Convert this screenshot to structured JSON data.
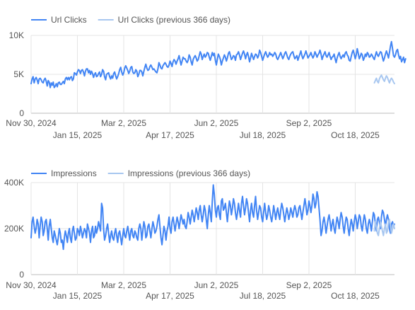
{
  "colors": {
    "current": "#4285F4",
    "previous": "#A8C7F0",
    "grid": "#e4e4e4",
    "text": "#555555"
  },
  "chart_data": [
    {
      "type": "line",
      "series": [
        {
          "name": "Url Clicks",
          "start_date": "2024-11-30",
          "values": [
            3800,
            4400,
            4700,
            3900,
            4400,
            4600,
            4300,
            3800,
            4400,
            4500,
            4300,
            4000,
            3900,
            4300,
            4500,
            4100,
            3500,
            4200,
            4000,
            3300,
            3900,
            3600,
            4000,
            3300,
            3500,
            3800,
            3400,
            3900,
            4000,
            3700,
            3700,
            3900,
            4100,
            3800,
            4400,
            4600,
            4300,
            4600,
            4300,
            4600,
            4700,
            4200,
            4400,
            5200,
            5100,
            4900,
            5300,
            5600,
            5500,
            5100,
            5500,
            5600,
            5300,
            4800,
            5400,
            5700,
            5700,
            5200,
            5500,
            5000,
            5400,
            5100,
            4600,
            5000,
            5200,
            4700,
            4800,
            5100,
            5300,
            4700,
            5000,
            5600,
            5400,
            4700,
            4300,
            5000,
            5100,
            5200,
            4700,
            4400,
            4800,
            4500,
            5100,
            5300,
            4800,
            4400,
            4700,
            5100,
            5600,
            5900,
            5300,
            4900,
            5200,
            5800,
            6100,
            5800,
            5500,
            5100,
            5400,
            5900,
            6000,
            5300,
            5100,
            5200,
            5600,
            5400,
            4700,
            5000,
            5500,
            5500,
            5300,
            4800,
            5400,
            5900,
            6300,
            5800,
            5500,
            5600,
            6000,
            6200,
            5900,
            5600,
            5700,
            5500,
            5300,
            5200,
            5700,
            6500,
            6200,
            5800,
            5700,
            6100,
            6300,
            6500,
            6300,
            6000,
            5900,
            6200,
            6700,
            6400,
            6000,
            6600,
            6900,
            6700,
            6300,
            6700,
            7000,
            7400,
            6800,
            6200,
            6700,
            7200,
            7000,
            7000,
            6700,
            6500,
            6800,
            7500,
            7200,
            6600,
            6200,
            6900,
            7200,
            7400,
            7100,
            6700,
            6900,
            7400,
            7900,
            7600,
            6900,
            7300,
            7600,
            7200,
            7400,
            7800,
            7700,
            7200,
            6800,
            7300,
            7800,
            7400,
            7700,
            6800,
            6200,
            6900,
            7600,
            7300,
            6900,
            6200,
            6700,
            7100,
            7500,
            7200,
            6700,
            7100,
            7700,
            7900,
            7400,
            6900,
            7100,
            7400,
            7300,
            6800,
            7500,
            7600,
            7900,
            7500,
            6900,
            7300,
            7700,
            8000,
            7600,
            7000,
            7500,
            7800,
            7300,
            6600,
            7100,
            7700,
            7300,
            6900,
            7300,
            7600,
            7500,
            7100,
            7400,
            8100,
            7800,
            7300,
            6800,
            7200,
            7600,
            7900,
            7500,
            7200,
            7400,
            7800,
            7500,
            7600,
            7300,
            7500,
            7800,
            7600,
            7100,
            6900,
            7200,
            7500,
            7800,
            7400,
            7000,
            7300,
            7700,
            7900,
            7500,
            7100,
            6900,
            7300,
            7600,
            7800,
            7900,
            7400,
            7000,
            7200,
            7400,
            6800,
            7200,
            7600,
            8000,
            7400,
            7000,
            7300,
            7600,
            8000,
            7600,
            7100,
            7300,
            7500,
            7800,
            7400,
            7100,
            7400,
            7900,
            7600,
            7200,
            7500,
            7700,
            8100,
            7600,
            6900,
            7300,
            7600,
            7900,
            7400,
            7200,
            7500,
            7800,
            7300,
            6900,
            7200,
            7300,
            7600,
            7000,
            6500,
            7100,
            7500,
            7800,
            7300,
            7000,
            7300,
            7500,
            7200,
            7700,
            7900,
            7500,
            7300,
            6800,
            6700,
            7300,
            7800,
            8100,
            7600,
            7000,
            7500,
            8300,
            7700,
            7000,
            7300,
            7700,
            7500,
            6800,
            7100,
            7600,
            7300,
            7800,
            7600,
            7200,
            7300,
            7600,
            7400,
            7100,
            6900,
            7400,
            7900,
            7500,
            7300,
            7600,
            7900,
            7800,
            7200,
            6700,
            7100,
            7600,
            8000,
            7600,
            7100,
            7800,
            8600,
            9200,
            8300,
            7400,
            7200,
            7500,
            8000,
            8200,
            7500,
            7000,
            7300,
            6600,
            6900,
            7200,
            6500,
            7000
          ]
        },
        {
          "name": "Url Clicks (previous 366 days)",
          "start_date": "2025-11-06",
          "values": [
            3900,
            4200,
            4500,
            4100,
            3900,
            4400,
            4700,
            4900,
            4600,
            4300,
            4100,
            4500,
            4800,
            4600,
            4200,
            3900,
            4300,
            4500,
            4300,
            4000,
            3800
          ]
        }
      ],
      "x_ticks": [
        "Nov 30, 2024",
        "Jan 15, 2025",
        "Mar 2, 2025",
        "Apr 17, 2025",
        "Jun 2, 2025",
        "Jul 18, 2025",
        "Sep 2, 2025",
        "Oct 18, 2025"
      ],
      "y_ticks": [
        "0",
        "5K",
        "10K"
      ],
      "ylim": [
        0,
        10000
      ],
      "x_range": [
        "2024-11-30",
        "2025-11-26"
      ],
      "grid": true,
      "legend": "top-left"
    },
    {
      "type": "line",
      "series": [
        {
          "name": "Impressions",
          "start_date": "2024-11-30",
          "values": [
            160000,
            230000,
            250000,
            210000,
            180000,
            200000,
            240000,
            220000,
            160000,
            210000,
            250000,
            230000,
            170000,
            190000,
            230000,
            240000,
            200000,
            150000,
            210000,
            240000,
            200000,
            160000,
            140000,
            190000,
            170000,
            150000,
            130000,
            160000,
            200000,
            180000,
            140000,
            150000,
            110000,
            160000,
            190000,
            170000,
            140000,
            180000,
            200000,
            160000,
            140000,
            190000,
            210000,
            180000,
            150000,
            160000,
            200000,
            190000,
            170000,
            210000,
            190000,
            160000,
            180000,
            200000,
            190000,
            160000,
            220000,
            200000,
            180000,
            140000,
            190000,
            210000,
            160000,
            170000,
            210000,
            180000,
            200000,
            230000,
            210000,
            190000,
            310000,
            290000,
            200000,
            150000,
            170000,
            200000,
            220000,
            180000,
            140000,
            170000,
            190000,
            160000,
            150000,
            180000,
            200000,
            170000,
            140000,
            180000,
            190000,
            160000,
            130000,
            170000,
            200000,
            170000,
            160000,
            190000,
            210000,
            180000,
            150000,
            190000,
            200000,
            170000,
            160000,
            190000,
            180000,
            160000,
            150000,
            200000,
            220000,
            200000,
            150000,
            190000,
            230000,
            210000,
            160000,
            170000,
            210000,
            220000,
            190000,
            160000,
            200000,
            230000,
            210000,
            180000,
            190000,
            210000,
            240000,
            260000,
            210000,
            160000,
            130000,
            170000,
            210000,
            190000,
            150000,
            190000,
            210000,
            250000,
            200000,
            180000,
            230000,
            250000,
            220000,
            190000,
            220000,
            250000,
            230000,
            200000,
            230000,
            260000,
            240000,
            220000,
            240000,
            210000,
            200000,
            230000,
            270000,
            250000,
            220000,
            250000,
            280000,
            260000,
            230000,
            260000,
            290000,
            270000,
            240000,
            280000,
            300000,
            260000,
            230000,
            260000,
            300000,
            280000,
            240000,
            200000,
            260000,
            300000,
            270000,
            230000,
            320000,
            390000,
            350000,
            280000,
            250000,
            290000,
            300000,
            260000,
            240000,
            320000,
            330000,
            280000,
            290000,
            310000,
            270000,
            230000,
            280000,
            320000,
            300000,
            260000,
            290000,
            330000,
            310000,
            270000,
            240000,
            270000,
            310000,
            280000,
            250000,
            310000,
            340000,
            300000,
            260000,
            290000,
            330000,
            310000,
            270000,
            230000,
            280000,
            310000,
            270000,
            250000,
            300000,
            340000,
            280000,
            240000,
            270000,
            300000,
            290000,
            250000,
            230000,
            270000,
            310000,
            270000,
            240000,
            260000,
            300000,
            280000,
            250000,
            230000,
            260000,
            300000,
            270000,
            240000,
            270000,
            290000,
            260000,
            240000,
            280000,
            310000,
            290000,
            260000,
            230000,
            260000,
            290000,
            270000,
            240000,
            260000,
            290000,
            270000,
            250000,
            280000,
            300000,
            280000,
            250000,
            260000,
            290000,
            300000,
            270000,
            240000,
            270000,
            300000,
            330000,
            300000,
            260000,
            280000,
            320000,
            300000,
            270000,
            300000,
            350000,
            330000,
            290000,
            310000,
            360000,
            340000,
            290000,
            240000,
            170000,
            190000,
            230000,
            250000,
            220000,
            180000,
            210000,
            240000,
            260000,
            230000,
            190000,
            220000,
            240000,
            200000,
            180000,
            220000,
            250000,
            230000,
            200000,
            240000,
            270000,
            250000,
            210000,
            180000,
            220000,
            250000,
            240000,
            200000,
            170000,
            210000,
            240000,
            220000,
            190000,
            230000,
            260000,
            240000,
            200000,
            230000,
            260000,
            250000,
            210000,
            190000,
            230000,
            260000,
            240000,
            200000,
            180000,
            220000,
            240000,
            220000,
            190000,
            230000,
            270000,
            260000,
            220000,
            190000,
            240000,
            250000,
            230000,
            200000,
            250000,
            280000,
            270000,
            240000,
            210000,
            240000,
            260000,
            240000,
            200000,
            180000,
            220000,
            230000,
            210000,
            220000
          ]
        },
        {
          "name": "Impressions (previous 366 days)",
          "start_date": "2025-11-06",
          "values": [
            190000,
            230000,
            210000,
            180000,
            170000,
            200000,
            230000,
            210000,
            190000,
            170000,
            200000,
            220000,
            180000,
            190000,
            230000,
            240000,
            210000,
            180000,
            200000,
            220000,
            200000
          ]
        }
      ],
      "x_ticks": [
        "Nov 30, 2024",
        "Jan 15, 2025",
        "Mar 2, 2025",
        "Apr 17, 2025",
        "Jun 2, 2025",
        "Jul 18, 2025",
        "Sep 2, 2025",
        "Oct 18, 2025"
      ],
      "y_ticks": [
        "0",
        "200K",
        "400K"
      ],
      "ylim": [
        0,
        400000
      ],
      "x_range": [
        "2024-11-30",
        "2025-11-26"
      ],
      "grid": true,
      "legend": "top-left"
    }
  ]
}
